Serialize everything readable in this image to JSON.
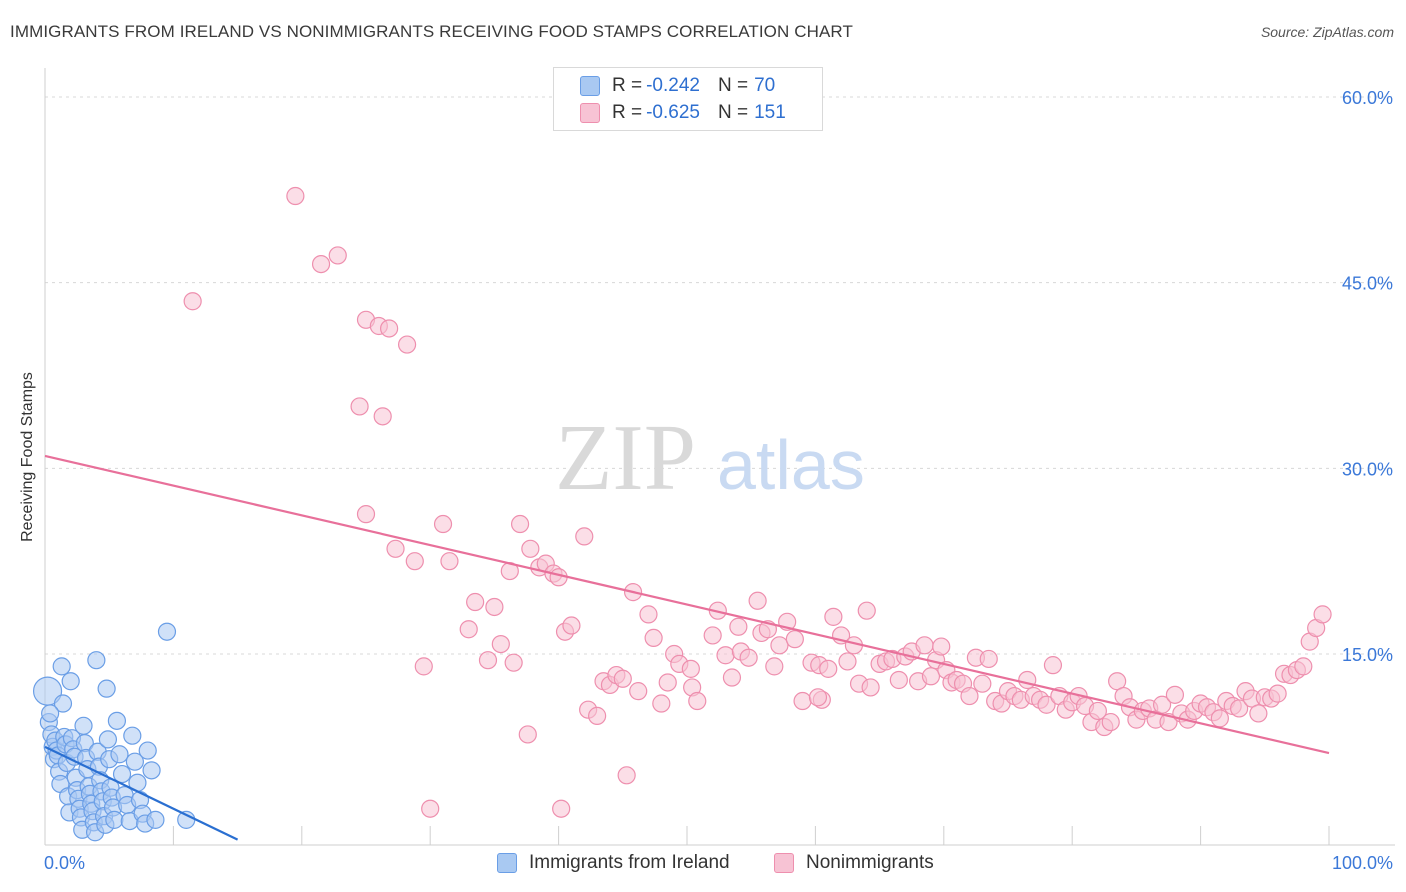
{
  "title": "IMMIGRANTS FROM IRELAND VS NONIMMIGRANTS RECEIVING FOOD STAMPS CORRELATION CHART",
  "source": "Source: ZipAtlas.com",
  "watermark": {
    "zip": "ZIP",
    "atlas": "atlas"
  },
  "legend_top": [
    {
      "r_label": "R = ",
      "r_value": "-0.242",
      "n_label": "N = ",
      "n_value": "70",
      "color": "#8fb8ee"
    },
    {
      "r_label": "R = ",
      "r_value": "-0.625",
      "n_label": "N = ",
      "n_value": "151",
      "color": "#f4a3be"
    }
  ],
  "legend_bottom": [
    {
      "label": "Immigrants from Ireland",
      "color": "#8fb8ee"
    },
    {
      "label": "Nonimmigrants",
      "color": "#f4a3be"
    }
  ],
  "colors": {
    "blue_fill": "#a9c9f2",
    "blue_stroke": "#6a9ee6",
    "blue_line": "#2a6fd1",
    "pink_fill": "#f7c3d4",
    "pink_stroke": "#ee8fae",
    "pink_line": "#e8709a",
    "grid": "#d8d8d8",
    "tick_text": "#3b78d8"
  },
  "chart_data": {
    "type": "scatter",
    "title": "IMMIGRANTS FROM IRELAND VS NONIMMIGRANTS RECEIVING FOOD STAMPS CORRELATION CHART",
    "xlabel": "",
    "ylabel": "Receiving Food Stamps",
    "xlim": [
      0,
      100
    ],
    "ylim": [
      0,
      60
    ],
    "x_tick_labels": [
      "0.0%",
      "100.0%"
    ],
    "y_ticks": [
      15,
      30,
      45,
      60
    ],
    "y_tick_labels": [
      "15.0%",
      "30.0%",
      "45.0%",
      "60.0%"
    ],
    "series": [
      {
        "name": "Immigrants from Ireland",
        "r": -0.242,
        "n": 70,
        "trend": {
          "x0": 0,
          "y0": 7.5,
          "x1": 15,
          "y1": 0
        },
        "points": [
          [
            0.2,
            12
          ],
          [
            0.3,
            9.5
          ],
          [
            0.5,
            8.5
          ],
          [
            0.6,
            7.5
          ],
          [
            0.7,
            6.5
          ],
          [
            0.8,
            8
          ],
          [
            0.9,
            7.2
          ],
          [
            1,
            6.8
          ],
          [
            1.1,
            5.5
          ],
          [
            1.2,
            4.5
          ],
          [
            1.3,
            14
          ],
          [
            1.4,
            11
          ],
          [
            1.5,
            8.3
          ],
          [
            1.6,
            7.7
          ],
          [
            1.7,
            6.2
          ],
          [
            1.8,
            3.5
          ],
          [
            1.9,
            2.2
          ],
          [
            2,
            12.8
          ],
          [
            2.1,
            8.2
          ],
          [
            2.2,
            7.3
          ],
          [
            2.3,
            6.7
          ],
          [
            2.4,
            5
          ],
          [
            2.5,
            4
          ],
          [
            2.6,
            3.3
          ],
          [
            2.7,
            2.5
          ],
          [
            2.8,
            1.8
          ],
          [
            2.9,
            0.8
          ],
          [
            3,
            9.2
          ],
          [
            3.1,
            7.8
          ],
          [
            3.2,
            6.6
          ],
          [
            3.3,
            5.7
          ],
          [
            3.4,
            4.3
          ],
          [
            3.5,
            3.7
          ],
          [
            3.6,
            2.9
          ],
          [
            3.7,
            2.3
          ],
          [
            3.8,
            1.4
          ],
          [
            3.9,
            0.6
          ],
          [
            4,
            14.5
          ],
          [
            4.1,
            7.1
          ],
          [
            4.2,
            5.9
          ],
          [
            4.3,
            4.8
          ],
          [
            4.4,
            3.9
          ],
          [
            4.5,
            3.1
          ],
          [
            4.6,
            1.9
          ],
          [
            4.7,
            1.2
          ],
          [
            4.8,
            12.2
          ],
          [
            4.9,
            8.1
          ],
          [
            5,
            6.5
          ],
          [
            5.1,
            4.2
          ],
          [
            5.2,
            3.4
          ],
          [
            5.3,
            2.6
          ],
          [
            5.4,
            1.6
          ],
          [
            5.6,
            9.6
          ],
          [
            5.8,
            6.9
          ],
          [
            6,
            5.3
          ],
          [
            6.2,
            3.6
          ],
          [
            6.4,
            2.8
          ],
          [
            6.6,
            1.5
          ],
          [
            6.8,
            8.4
          ],
          [
            7,
            6.3
          ],
          [
            7.2,
            4.6
          ],
          [
            7.4,
            3.2
          ],
          [
            7.6,
            2.1
          ],
          [
            7.8,
            1.3
          ],
          [
            8,
            7.2
          ],
          [
            8.3,
            5.6
          ],
          [
            8.6,
            1.6
          ],
          [
            9.5,
            16.8
          ],
          [
            11,
            1.6
          ],
          [
            0.4,
            10.2
          ]
        ]
      },
      {
        "name": "Nonimmigrants",
        "r": -0.625,
        "n": 151,
        "trend": {
          "x0": 0,
          "y0": 31,
          "x1": 100,
          "y1": 7
        },
        "points": [
          [
            11.5,
            43.5
          ],
          [
            19.5,
            52
          ],
          [
            21.5,
            46.5
          ],
          [
            22.8,
            47.2
          ],
          [
            24.5,
            35
          ],
          [
            25,
            42
          ],
          [
            26,
            41.5
          ],
          [
            26.8,
            41.3
          ],
          [
            28.2,
            40
          ],
          [
            26.3,
            34.2
          ],
          [
            25,
            26.3
          ],
          [
            27.3,
            23.5
          ],
          [
            29.5,
            14
          ],
          [
            28.8,
            22.5
          ],
          [
            31,
            25.5
          ],
          [
            31.5,
            22.5
          ],
          [
            33,
            17
          ],
          [
            33.5,
            19.2
          ],
          [
            35,
            18.8
          ],
          [
            35.5,
            15.8
          ],
          [
            36.5,
            14.3
          ],
          [
            36.2,
            21.7
          ],
          [
            37,
            25.5
          ],
          [
            37.6,
            8.5
          ],
          [
            37.8,
            23.5
          ],
          [
            38.5,
            22
          ],
          [
            39,
            22.3
          ],
          [
            39.6,
            21.5
          ],
          [
            40,
            21.2
          ],
          [
            40.5,
            16.8
          ],
          [
            41,
            17.3
          ],
          [
            40.2,
            2.5
          ],
          [
            42,
            24.5
          ],
          [
            42.3,
            10.5
          ],
          [
            43,
            10
          ],
          [
            43.5,
            12.8
          ],
          [
            44,
            12.5
          ],
          [
            44.5,
            13.3
          ],
          [
            45,
            13
          ],
          [
            45.3,
            5.2
          ],
          [
            45.8,
            20
          ],
          [
            46.2,
            12
          ],
          [
            47,
            18.2
          ],
          [
            47.4,
            16.3
          ],
          [
            48,
            11
          ],
          [
            48.5,
            12.7
          ],
          [
            49,
            15
          ],
          [
            49.4,
            14.2
          ],
          [
            50.3,
            13.8
          ],
          [
            50.4,
            12.3
          ],
          [
            50.8,
            11.2
          ],
          [
            52,
            16.5
          ],
          [
            52.4,
            18.5
          ],
          [
            53,
            14.9
          ],
          [
            53.5,
            13.1
          ],
          [
            54,
            17.2
          ],
          [
            54.2,
            15.2
          ],
          [
            54.8,
            14.7
          ],
          [
            55.5,
            19.3
          ],
          [
            55.8,
            16.7
          ],
          [
            56.3,
            17
          ],
          [
            56.8,
            14
          ],
          [
            57.2,
            15.7
          ],
          [
            57.8,
            17.6
          ],
          [
            58.4,
            16.2
          ],
          [
            59,
            11.2
          ],
          [
            59.7,
            14.3
          ],
          [
            60.3,
            14.1
          ],
          [
            60.5,
            11.3
          ],
          [
            61,
            13.8
          ],
          [
            61.4,
            18
          ],
          [
            62,
            16.5
          ],
          [
            62.5,
            14.4
          ],
          [
            63,
            15.7
          ],
          [
            63.4,
            12.6
          ],
          [
            64,
            18.5
          ],
          [
            64.3,
            12.3
          ],
          [
            65,
            14.2
          ],
          [
            65.5,
            14.4
          ],
          [
            66,
            14.6
          ],
          [
            66.5,
            12.9
          ],
          [
            67,
            14.8
          ],
          [
            67.5,
            15.2
          ],
          [
            68,
            12.8
          ],
          [
            68.5,
            15.7
          ],
          [
            69,
            13.2
          ],
          [
            69.4,
            14.5
          ],
          [
            69.8,
            15.6
          ],
          [
            70.2,
            13.7
          ],
          [
            70.6,
            12.7
          ],
          [
            71,
            12.9
          ],
          [
            71.5,
            12.6
          ],
          [
            72,
            11.6
          ],
          [
            72.5,
            14.7
          ],
          [
            73,
            12.6
          ],
          [
            73.5,
            14.6
          ],
          [
            74,
            11.2
          ],
          [
            74.5,
            11
          ],
          [
            75,
            12
          ],
          [
            75.5,
            11.6
          ],
          [
            76,
            11.3
          ],
          [
            76.5,
            12.9
          ],
          [
            77,
            11.6
          ],
          [
            77.5,
            11.3
          ],
          [
            78,
            10.9
          ],
          [
            78.5,
            14.1
          ],
          [
            79,
            11.6
          ],
          [
            79.5,
            10.5
          ],
          [
            80,
            11.1
          ],
          [
            80.5,
            11.6
          ],
          [
            81,
            10.8
          ],
          [
            81.5,
            9.5
          ],
          [
            82,
            10.4
          ],
          [
            82.5,
            9.1
          ],
          [
            83,
            9.5
          ],
          [
            83.5,
            12.8
          ],
          [
            84,
            11.6
          ],
          [
            84.5,
            10.7
          ],
          [
            85,
            9.7
          ],
          [
            85.5,
            10.4
          ],
          [
            86,
            10.6
          ],
          [
            86.5,
            9.7
          ],
          [
            87,
            10.9
          ],
          [
            87.5,
            9.5
          ],
          [
            88,
            11.7
          ],
          [
            88.5,
            10.2
          ],
          [
            89,
            9.7
          ],
          [
            89.5,
            10.4
          ],
          [
            90,
            11
          ],
          [
            90.5,
            10.7
          ],
          [
            91,
            10.3
          ],
          [
            91.5,
            9.8
          ],
          [
            92,
            11.2
          ],
          [
            92.5,
            10.8
          ],
          [
            93,
            10.6
          ],
          [
            93.5,
            12
          ],
          [
            94,
            11.4
          ],
          [
            94.5,
            10.2
          ],
          [
            95,
            11.5
          ],
          [
            95.5,
            11.4
          ],
          [
            96,
            11.8
          ],
          [
            96.5,
            13.4
          ],
          [
            97,
            13.3
          ],
          [
            97.5,
            13.7
          ],
          [
            98,
            14
          ],
          [
            98.5,
            16
          ],
          [
            99,
            17.1
          ],
          [
            99.5,
            18.2
          ],
          [
            30,
            2.5
          ],
          [
            60.2,
            11.5
          ],
          [
            34.5,
            14.5
          ]
        ]
      }
    ]
  }
}
